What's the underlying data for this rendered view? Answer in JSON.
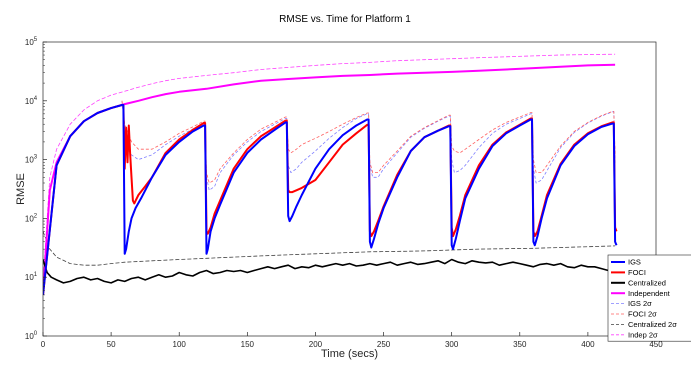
{
  "chart_data": {
    "type": "line",
    "title": "RMSE vs. Time for Platform 1",
    "xlabel": "Time (secs)",
    "ylabel": "RMSE",
    "x_scale": "linear",
    "y_scale": "log",
    "xlim": [
      0,
      450
    ],
    "ylim": [
      1,
      100000
    ],
    "x_ticks": [
      "0",
      "50",
      "100",
      "150",
      "200",
      "250",
      "300",
      "350",
      "400",
      "450"
    ],
    "y_ticks": [
      {
        "base": "10",
        "exp": "0"
      },
      {
        "base": "10",
        "exp": "1"
      },
      {
        "base": "10",
        "exp": "2"
      },
      {
        "base": "10",
        "exp": "3"
      },
      {
        "base": "10",
        "exp": "4"
      },
      {
        "base": "10",
        "exp": "5"
      }
    ],
    "grid": false,
    "legend_position": "right",
    "legend": [
      {
        "label": "IGS",
        "style": "solid",
        "color": "#0000ff",
        "width": 2
      },
      {
        "label": "FOCI",
        "style": "solid",
        "color": "#ff0000",
        "width": 2
      },
      {
        "label": "Centralized",
        "style": "solid",
        "color": "#000000",
        "width": 2
      },
      {
        "label": "Independent",
        "style": "solid",
        "color": "#ff00ff",
        "width": 2
      },
      {
        "label": "IGS 2σ",
        "style": "dashed",
        "color": "#8080ff",
        "width": 0.8
      },
      {
        "label": "FOCI 2σ",
        "style": "dashed",
        "color": "#ff6060",
        "width": 0.8
      },
      {
        "label": "Centralized 2σ",
        "style": "dashed",
        "color": "#404040",
        "width": 0.8
      },
      {
        "label": "Indep 2σ",
        "style": "dashed",
        "color": "#ff40ff",
        "width": 0.8
      }
    ],
    "series": [
      {
        "name": "IGS",
        "color": "#0000ff",
        "width": 2,
        "dash": "",
        "x": [
          0,
          10,
          20,
          30,
          40,
          50,
          58,
          59,
          60,
          61,
          63,
          65,
          68,
          72,
          80,
          90,
          100,
          110,
          118,
          119,
          120,
          121,
          123,
          126,
          130,
          140,
          150,
          160,
          170,
          178,
          179,
          180,
          181,
          183,
          186,
          190,
          200,
          210,
          220,
          230,
          238,
          239,
          240,
          241,
          243,
          246,
          250,
          260,
          270,
          280,
          290,
          298,
          299,
          300,
          301,
          303,
          306,
          310,
          320,
          330,
          340,
          350,
          358,
          359,
          360,
          361,
          363,
          366,
          370,
          380,
          390,
          400,
          410,
          418,
          419,
          420,
          421
        ],
        "y": [
          5,
          800,
          2500,
          4500,
          6200,
          7500,
          8500,
          8500,
          25,
          30,
          60,
          100,
          150,
          220,
          500,
          1200,
          2000,
          3000,
          3800,
          3800,
          25,
          30,
          60,
          100,
          170,
          600,
          1300,
          2200,
          3200,
          4300,
          4300,
          110,
          90,
          110,
          160,
          250,
          700,
          1500,
          2600,
          3800,
          4800,
          4800,
          40,
          32,
          45,
          80,
          150,
          500,
          1400,
          2400,
          3100,
          3700,
          3700,
          35,
          30,
          45,
          90,
          220,
          700,
          1700,
          2800,
          3800,
          4800,
          4800,
          40,
          35,
          50,
          100,
          220,
          800,
          1700,
          2700,
          3600,
          4100,
          4100,
          40,
          35
        ]
      },
      {
        "name": "FOCI",
        "color": "#ff0000",
        "width": 2,
        "dash": "",
        "x": [
          0,
          10,
          20,
          30,
          40,
          50,
          58,
          59,
          60,
          61,
          62,
          63,
          64,
          65,
          66,
          67,
          68,
          70,
          75,
          80,
          90,
          100,
          110,
          118,
          119,
          120,
          121,
          123,
          126,
          130,
          140,
          150,
          160,
          170,
          178,
          179,
          180,
          181,
          183,
          186,
          190,
          200,
          210,
          220,
          230,
          238,
          239,
          240,
          241,
          243,
          246,
          250,
          260,
          270,
          280,
          290,
          298,
          299,
          300,
          301,
          303,
          306,
          310,
          320,
          330,
          340,
          350,
          358,
          359,
          360,
          361,
          363,
          366,
          370,
          380,
          390,
          400,
          410,
          418,
          419,
          420,
          421
        ],
        "y": [
          5,
          800,
          2500,
          4500,
          6200,
          7500,
          8500,
          8500,
          700,
          3500,
          900,
          3800,
          1200,
          500,
          200,
          180,
          200,
          250,
          350,
          500,
          1300,
          2200,
          3200,
          4200,
          4200,
          60,
          55,
          70,
          120,
          200,
          700,
          1500,
          2500,
          3500,
          4600,
          4600,
          300,
          280,
          280,
          300,
          330,
          450,
          900,
          1800,
          2800,
          3900,
          3900,
          60,
          50,
          60,
          90,
          160,
          550,
          1400,
          2400,
          3100,
          3800,
          3800,
          70,
          50,
          65,
          110,
          250,
          800,
          1800,
          2900,
          3900,
          5000,
          5000,
          60,
          50,
          60,
          110,
          250,
          850,
          1800,
          2800,
          3700,
          4300,
          4300,
          70,
          60
        ]
      },
      {
        "name": "Centralized",
        "color": "#000000",
        "width": 1.6,
        "dash": "",
        "x": [
          0,
          3,
          6,
          10,
          15,
          20,
          25,
          30,
          35,
          40,
          45,
          50,
          55,
          60,
          65,
          70,
          75,
          80,
          85,
          90,
          95,
          100,
          105,
          110,
          115,
          120,
          125,
          130,
          135,
          140,
          145,
          150,
          155,
          160,
          165,
          170,
          175,
          180,
          185,
          190,
          195,
          200,
          205,
          210,
          215,
          220,
          225,
          230,
          235,
          240,
          245,
          250,
          255,
          260,
          265,
          270,
          275,
          280,
          285,
          290,
          295,
          300,
          305,
          310,
          315,
          320,
          325,
          330,
          335,
          340,
          345,
          350,
          355,
          360,
          365,
          370,
          375,
          380,
          385,
          390,
          395,
          400,
          405,
          410,
          415,
          420
        ],
        "y": [
          20,
          12,
          10,
          9,
          8,
          8.5,
          9.5,
          10,
          9,
          9.5,
          8.5,
          8,
          9,
          8.5,
          9.5,
          10,
          9,
          10,
          11,
          10,
          10.5,
          12,
          11,
          10.5,
          12,
          13,
          11.5,
          12,
          13,
          12.5,
          13,
          12,
          13,
          14,
          15,
          14,
          15,
          16,
          14,
          15,
          14.5,
          16,
          15,
          16,
          17,
          16,
          17,
          15.5,
          16,
          17,
          16,
          17,
          18,
          16,
          17,
          18,
          16.5,
          17,
          18,
          19,
          17,
          20,
          18,
          17,
          19,
          18,
          17.5,
          18,
          16,
          17,
          18,
          17,
          16,
          15,
          16.5,
          17,
          16,
          17,
          15,
          14.5,
          16,
          15,
          15,
          14,
          13,
          13
        ]
      },
      {
        "name": "Independent",
        "color": "#ff00ff",
        "width": 2,
        "dash": "",
        "x": [
          0,
          5,
          10,
          20,
          30,
          40,
          50,
          60,
          70,
          80,
          90,
          100,
          120,
          140,
          160,
          180,
          200,
          220,
          240,
          260,
          280,
          300,
          320,
          340,
          360,
          380,
          400,
          420
        ],
        "y": [
          5,
          300,
          900,
          2500,
          4500,
          6200,
          7500,
          8800,
          10000,
          11500,
          13000,
          14200,
          16000,
          19000,
          22000,
          23500,
          25000,
          26500,
          27500,
          29000,
          30000,
          31000,
          32500,
          34000,
          36000,
          38000,
          40000,
          41000
        ]
      },
      {
        "name": "IGS 2σ",
        "color": "#8080ff",
        "width": 0.8,
        "dash": "3,2",
        "x": [
          58,
          60,
          62,
          65,
          70,
          80,
          90,
          100,
          110,
          118,
          119,
          120,
          122,
          126,
          130,
          140,
          150,
          160,
          170,
          178,
          179,
          180,
          182,
          186,
          190,
          200,
          210,
          220,
          230,
          238,
          239,
          240,
          242,
          246,
          250,
          260,
          270,
          280,
          290,
          298,
          299,
          300,
          302,
          306,
          310,
          320,
          330,
          340,
          350,
          358,
          359,
          360,
          362,
          366,
          370,
          380,
          390,
          400,
          410,
          418,
          419,
          420
        ],
        "y": [
          10000,
          3000,
          1500,
          1200,
          1000,
          1200,
          1800,
          2500,
          3300,
          4200,
          4200,
          500,
          300,
          350,
          600,
          1200,
          2000,
          3000,
          4000,
          5000,
          5000,
          800,
          600,
          700,
          900,
          1400,
          2300,
          3500,
          5000,
          6000,
          6000,
          800,
          500,
          500,
          700,
          1300,
          2400,
          3400,
          4500,
          5500,
          5500,
          1000,
          600,
          650,
          800,
          1600,
          2800,
          4000,
          5000,
          6000,
          6000,
          700,
          400,
          450,
          650,
          1600,
          2900,
          4200,
          5500,
          6500,
          6500,
          800
        ]
      },
      {
        "name": "FOCI 2σ",
        "color": "#ff6060",
        "width": 0.8,
        "dash": "3,2",
        "x": [
          58,
          60,
          62,
          65,
          70,
          80,
          90,
          100,
          110,
          118,
          119,
          120,
          122,
          126,
          130,
          140,
          150,
          160,
          170,
          178,
          179,
          180,
          182,
          186,
          190,
          200,
          210,
          220,
          230,
          238,
          239,
          240,
          242,
          246,
          250,
          260,
          270,
          280,
          290,
          298,
          299,
          300,
          302,
          306,
          310,
          320,
          330,
          340,
          350,
          358,
          359,
          360,
          362,
          366,
          370,
          380,
          390,
          400,
          410,
          418,
          419,
          420
        ],
        "y": [
          10000,
          4000,
          3000,
          2000,
          1500,
          1500,
          2000,
          2800,
          3600,
          4500,
          4500,
          600,
          400,
          450,
          700,
          1300,
          2200,
          3300,
          4300,
          5300,
          5300,
          1500,
          1300,
          1500,
          1800,
          2300,
          3000,
          4000,
          5200,
          6200,
          6200,
          900,
          600,
          600,
          800,
          1400,
          2500,
          3500,
          4600,
          5700,
          5700,
          1700,
          1400,
          1300,
          1500,
          2200,
          3200,
          4300,
          5300,
          6300,
          6300,
          1000,
          600,
          600,
          800,
          1700,
          3000,
          4300,
          5600,
          6600,
          6600,
          1200
        ]
      },
      {
        "name": "Centralized 2σ",
        "color": "#404040",
        "width": 0.8,
        "dash": "4,2",
        "x": [
          0,
          5,
          10,
          20,
          30,
          40,
          50,
          60,
          80,
          100,
          120,
          140,
          160,
          180,
          200,
          220,
          240,
          260,
          280,
          300,
          320,
          340,
          360,
          380,
          400,
          420
        ],
        "y": [
          60,
          30,
          22,
          17,
          16,
          16,
          17,
          18,
          19,
          20,
          21,
          22,
          23,
          24,
          25,
          26,
          27,
          27.5,
          28,
          29,
          30,
          30.5,
          31,
          32,
          33,
          34
        ]
      },
      {
        "name": "Indep 2σ",
        "color": "#ff40ff",
        "width": 0.8,
        "dash": "4,2",
        "x": [
          0,
          5,
          10,
          20,
          30,
          40,
          50,
          60,
          70,
          80,
          90,
          100,
          120,
          140,
          160,
          180,
          200,
          220,
          240,
          260,
          280,
          300,
          320,
          340,
          360,
          380,
          400,
          420
        ],
        "y": [
          8,
          500,
          1500,
          4000,
          7000,
          10000,
          12500,
          14500,
          17000,
          19500,
          22000,
          24000,
          27000,
          30000,
          34000,
          37000,
          40000,
          43000,
          45000,
          48000,
          50000,
          52000,
          54000,
          56000,
          58000,
          60000,
          61000,
          62000
        ]
      }
    ]
  }
}
